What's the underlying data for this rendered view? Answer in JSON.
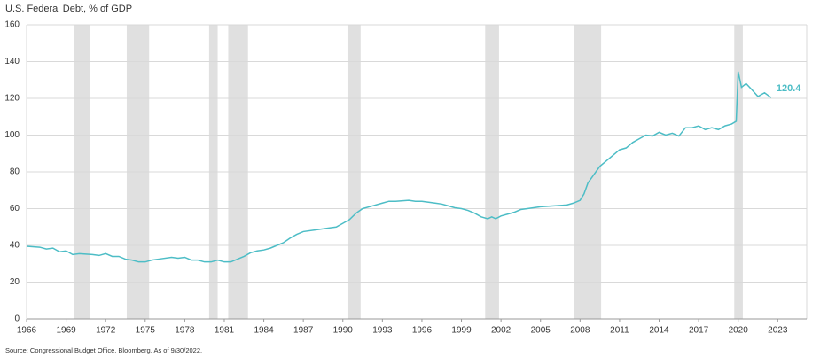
{
  "chart_data": {
    "type": "line",
    "title": "U.S. Federal Debt, % of GDP",
    "source": "Source: Congressional Budget Office, Bloomberg. As of 9/30/2022.",
    "x": [
      1966,
      1967,
      1967.5,
      1968,
      1968.5,
      1969,
      1969.5,
      1970,
      1971,
      1971.5,
      1972,
      1972.5,
      1973,
      1973.5,
      1974,
      1974.5,
      1975,
      1975.5,
      1976,
      1977,
      1977.5,
      1978,
      1978.5,
      1979,
      1979.5,
      1980,
      1980.5,
      1981,
      1981.5,
      1982,
      1982.5,
      1983,
      1983.5,
      1984,
      1984.5,
      1985,
      1985.5,
      1986,
      1986.5,
      1987,
      1988,
      1989,
      1989.5,
      1990,
      1990.5,
      1991,
      1991.5,
      1992,
      1993,
      1993.5,
      1994,
      1995,
      1995.5,
      1996,
      1997,
      1997.5,
      1998,
      1998.5,
      1999,
      1999.5,
      2000,
      2000.5,
      2001,
      2001.3,
      2001.6,
      2002,
      2002.5,
      2003,
      2003.5,
      2004,
      2005,
      2006,
      2007,
      2007.5,
      2008,
      2008.3,
      2008.6,
      2009,
      2009.5,
      2010,
      2010.5,
      2011,
      2011.5,
      2012,
      2012.5,
      2013,
      2013.5,
      2014,
      2014.5,
      2015,
      2015.5,
      2016,
      2016.5,
      2017,
      2017.5,
      2018,
      2018.5,
      2019,
      2019.5,
      2019.85,
      2020,
      2020.25,
      2020.6,
      2021,
      2021.5,
      2022,
      2022.5
    ],
    "series": [
      {
        "color": "#4dbdc6",
        "values": [
          39.5,
          39,
          38,
          38.5,
          36.5,
          37,
          35,
          35.5,
          35,
          34.5,
          35.5,
          34,
          34,
          32.5,
          32,
          31,
          31,
          32,
          32.5,
          33.5,
          33,
          33.5,
          32,
          32,
          31,
          31,
          32,
          31,
          31,
          32.5,
          34,
          36,
          37,
          37.5,
          38.5,
          40,
          41.5,
          44,
          46,
          47.5,
          48.5,
          49.5,
          50,
          52,
          54,
          57.5,
          60,
          61,
          63,
          64,
          64,
          64.5,
          64,
          64,
          63,
          62.5,
          61.5,
          60.5,
          60,
          59,
          57.5,
          55.5,
          54.5,
          55.5,
          54.5,
          56,
          57,
          58,
          59.5,
          60,
          61,
          61.5,
          62,
          63,
          64.5,
          68,
          74,
          78,
          83,
          86,
          89,
          92,
          93,
          96,
          98,
          100,
          99.5,
          101.5,
          100,
          101,
          99.5,
          104,
          104,
          105,
          103,
          104,
          103,
          105,
          106,
          107.5,
          134.5,
          126,
          128,
          125,
          121,
          123,
          120.4
        ]
      }
    ],
    "recessions": [
      [
        1969.6,
        1970.8
      ],
      [
        1973.6,
        1975.3
      ],
      [
        1979.85,
        1980.5
      ],
      [
        1981.3,
        1982.8
      ],
      [
        1990.35,
        1991.35
      ],
      [
        2000.8,
        2001.85
      ],
      [
        2007.55,
        2009.6
      ],
      [
        2019.7,
        2020.35
      ]
    ],
    "recession_color": "#e0e0e0",
    "xlim": [
      1966,
      2025.2
    ],
    "xticks": [
      1966,
      1969,
      1972,
      1975,
      1978,
      1981,
      1984,
      1987,
      1990,
      1993,
      1996,
      1999,
      2002,
      2005,
      2008,
      2011,
      2014,
      2017,
      2020,
      2023
    ],
    "ylim": [
      0,
      160
    ],
    "yticks": [
      0,
      20,
      40,
      60,
      80,
      100,
      120,
      140,
      160
    ],
    "grid": true
  }
}
